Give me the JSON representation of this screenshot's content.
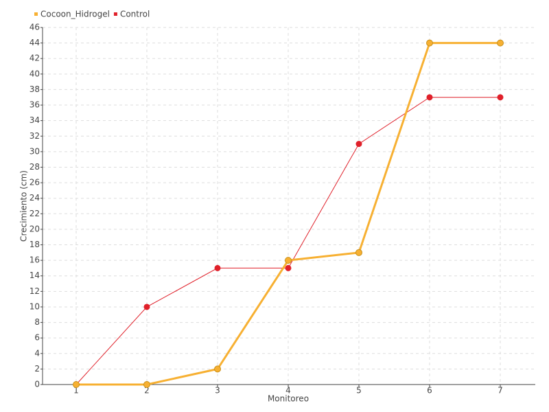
{
  "chart_data": {
    "type": "line",
    "x_label": "Monitoreo",
    "y_label": "Crecimiento (cm)",
    "categories": [
      "1",
      "2",
      "3",
      "4",
      "5",
      "6",
      "7"
    ],
    "series": [
      {
        "name": "Cocoon_Hidrogel",
        "color": "#f7b032",
        "values": [
          0,
          0,
          2,
          16,
          17,
          44,
          44
        ]
      },
      {
        "name": "Control",
        "color": "#e0202a",
        "values": [
          0,
          10,
          15,
          15,
          31,
          37,
          37
        ]
      }
    ],
    "ylim": [
      0,
      46
    ],
    "yticks": [
      0,
      2,
      4,
      6,
      8,
      10,
      12,
      14,
      16,
      18,
      20,
      22,
      24,
      26,
      28,
      30,
      32,
      34,
      36,
      38,
      40,
      42,
      44,
      46
    ],
    "grid": true,
    "legend": "top-left"
  }
}
